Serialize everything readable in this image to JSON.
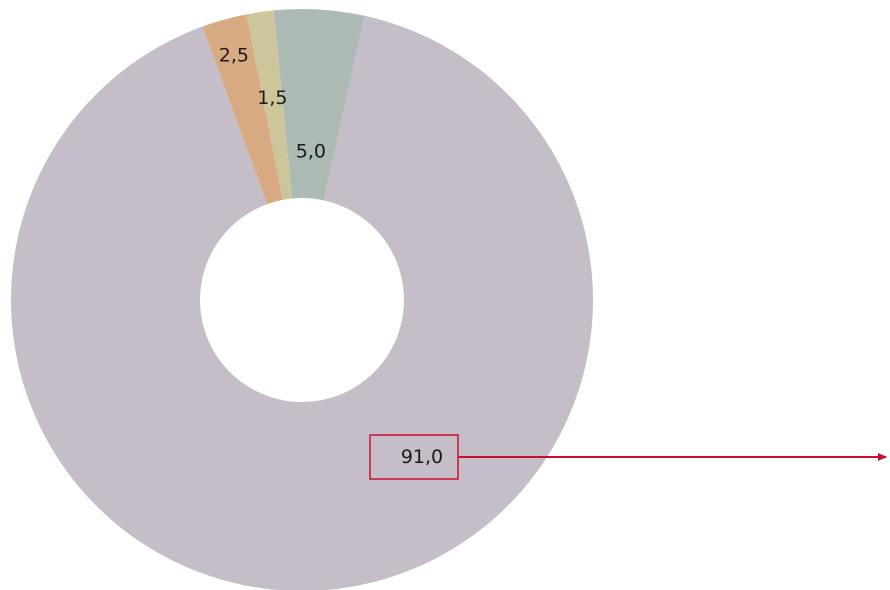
{
  "chart_data": {
    "type": "pie",
    "variant": "donut",
    "categories": [
      "",
      "",
      "",
      ""
    ],
    "values": [
      91.0,
      5.0,
      1.5,
      2.5
    ],
    "labels": [
      "91,0",
      "5,0",
      "1,5",
      "2,5"
    ],
    "colors": [
      "#c5bec9",
      "#abbab2",
      "#ccc69a",
      "#d8aa82"
    ],
    "title": "",
    "legend": "none",
    "annotation": {
      "label": "91,0",
      "style": "boxed label with arrow pointing right",
      "color": "#c8102e"
    }
  }
}
